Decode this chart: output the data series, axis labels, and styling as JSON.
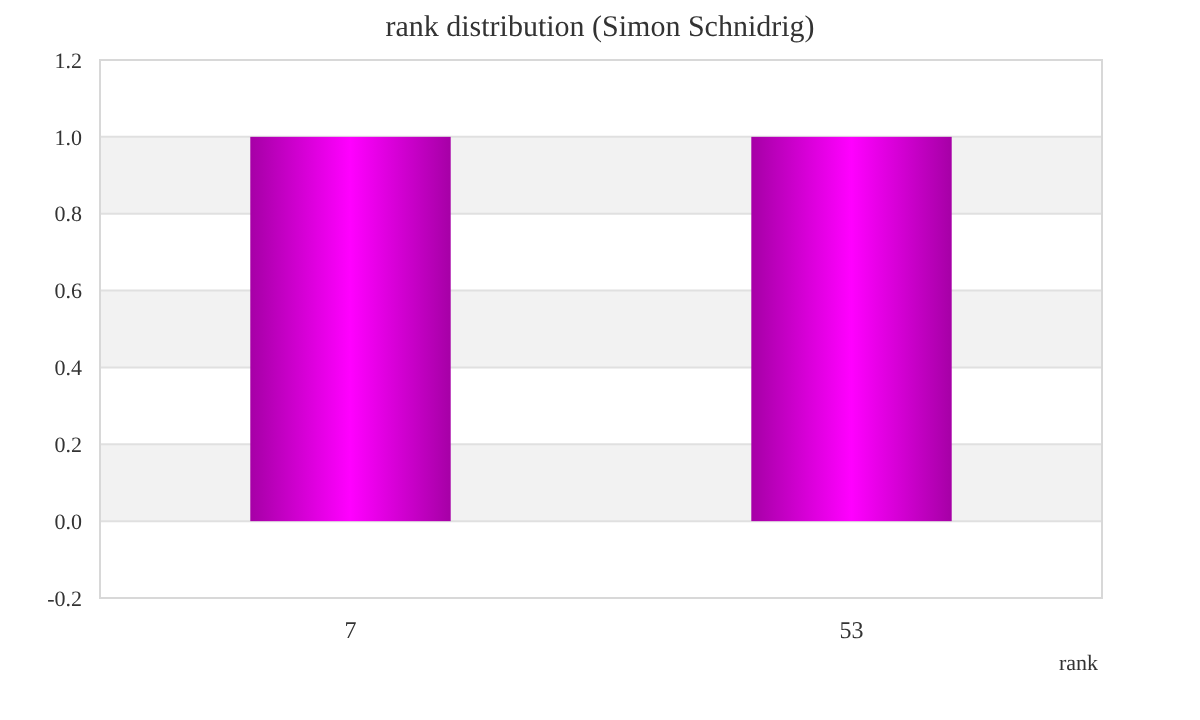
{
  "chart_data": {
    "type": "bar",
    "title": "rank distribution (Simon Schnidrig)",
    "xlabel": "rank",
    "categories": [
      "7",
      "53"
    ],
    "values": [
      1,
      1
    ],
    "color": "#ff00ff",
    "ylim": [
      -0.2,
      1.2
    ],
    "yticks": [
      -0.2,
      {
        "value": 0,
        "label": "0.0"
      },
      0.2,
      0.4,
      0.6,
      0.8,
      {
        "value": 1,
        "label": "1.0"
      },
      1.2
    ],
    "grid": "y"
  }
}
